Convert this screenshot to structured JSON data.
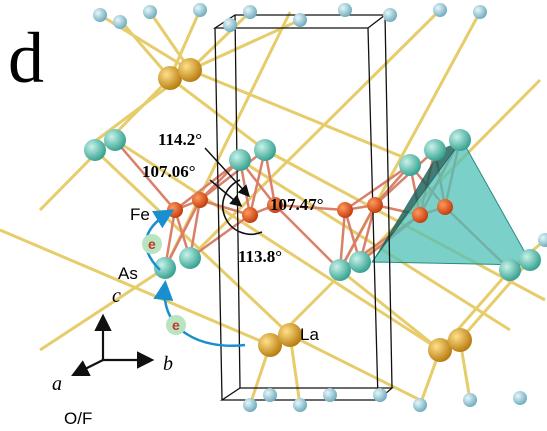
{
  "panel_label": "d",
  "angles": [
    "114.2°",
    "107.06°",
    "107.47°",
    "113.8°"
  ],
  "atom_labels": {
    "fe": "Fe",
    "as": "As",
    "la": "La",
    "of": "O/F"
  },
  "electron_labels": [
    "e",
    "e"
  ],
  "axis_labels": {
    "c": "c",
    "a": "a",
    "b": "b"
  }
}
